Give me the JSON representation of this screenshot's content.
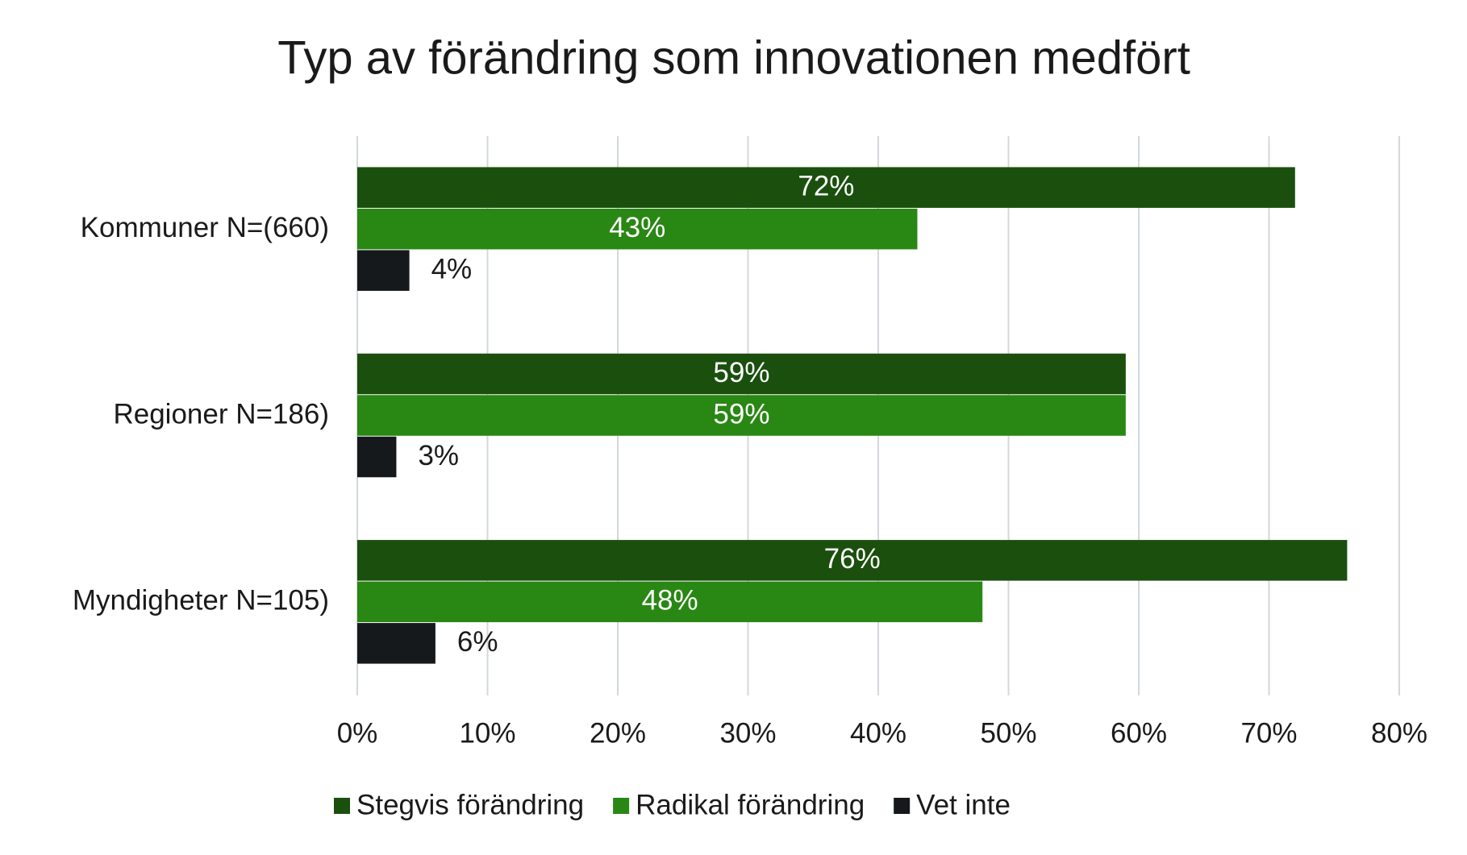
{
  "chart_data": {
    "type": "hbar",
    "title": "Typ av förändring som innovationen medfört",
    "categories": [
      "Kommuner N=(660)",
      "Regioner N=186)",
      "Myndigheter N=105)"
    ],
    "series": [
      {
        "name": "Stegvis förändring",
        "color": "#1a4f0d",
        "values": [
          72,
          59,
          76
        ],
        "value_labels": [
          "72%",
          "59%",
          "76%"
        ]
      },
      {
        "name": "Radikal förändring",
        "color": "#298713",
        "values": [
          43,
          59,
          48
        ],
        "value_labels": [
          "43%",
          "59%",
          "48%"
        ]
      },
      {
        "name": "Vet inte",
        "color": "#15191c",
        "values": [
          4,
          3,
          6
        ],
        "value_labels": [
          "4%",
          "3%",
          "6%"
        ]
      }
    ],
    "xlim": [
      0,
      80
    ],
    "xticks": [
      {
        "value": 0,
        "label": "0%"
      },
      {
        "value": 10,
        "label": "10%"
      },
      {
        "value": 20,
        "label": "20%"
      },
      {
        "value": 30,
        "label": "30%"
      },
      {
        "value": 40,
        "label": "40%"
      },
      {
        "value": 50,
        "label": "50%"
      },
      {
        "value": 60,
        "label": "60%"
      },
      {
        "value": 70,
        "label": "70%"
      },
      {
        "value": 80,
        "label": "80%"
      }
    ],
    "grid": true,
    "legend": "bottom"
  }
}
